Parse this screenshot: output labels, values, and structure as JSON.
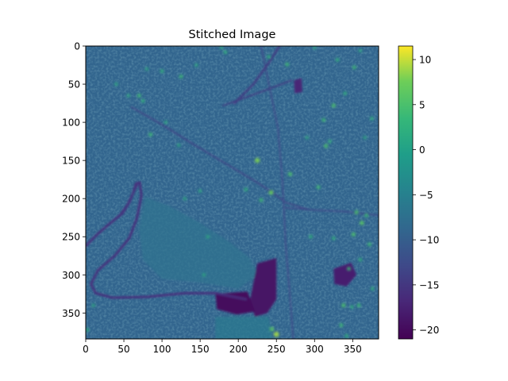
{
  "chart_data": {
    "type": "heatmap",
    "title": "Stitched Image",
    "xlabel": "",
    "ylabel": "",
    "x_ticks": [
      0,
      50,
      100,
      150,
      200,
      250,
      300,
      350
    ],
    "y_ticks": [
      0,
      50,
      100,
      150,
      200,
      250,
      300,
      350
    ],
    "xlim": [
      0,
      384
    ],
    "ylim": [
      384,
      0
    ],
    "y_inverted": true,
    "grid": false,
    "colormap": "viridis",
    "colorbar": {
      "min": -21,
      "max": 11.5,
      "ticks": [
        10,
        5,
        0,
        -5,
        -10,
        -15,
        -20
      ]
    },
    "background_value": -9,
    "features": [
      {
        "kind": "river",
        "value": -16,
        "width": 3,
        "points": [
          [
            0,
            262
          ],
          [
            15,
            247
          ],
          [
            30,
            234
          ],
          [
            45,
            222
          ],
          [
            55,
            208
          ],
          [
            62,
            193
          ],
          [
            66,
            180
          ],
          [
            71,
            179
          ],
          [
            73,
            196
          ],
          [
            67,
            226
          ],
          [
            57,
            252
          ],
          [
            38,
            275
          ],
          [
            16,
            294
          ],
          [
            7,
            312
          ],
          [
            13,
            324
          ],
          [
            35,
            330
          ],
          [
            80,
            329
          ],
          [
            130,
            324
          ],
          [
            170,
            324
          ],
          [
            190,
            328
          ],
          [
            210,
            332
          ]
        ]
      },
      {
        "kind": "river",
        "value": -15,
        "width": 2,
        "points": [
          [
            48,
            221
          ],
          [
            58,
            205
          ],
          [
            64,
            190
          ],
          [
            68,
            182
          ]
        ]
      },
      {
        "kind": "road",
        "value": -14,
        "width": 2,
        "points": [
          [
            60,
            80
          ],
          [
            100,
            103
          ],
          [
            140,
            128
          ],
          [
            180,
            152
          ],
          [
            220,
            176
          ],
          [
            245,
            192
          ],
          [
            262,
            205
          ],
          [
            290,
            214
          ]
        ]
      },
      {
        "kind": "road",
        "value": -13,
        "width": 2,
        "points": [
          [
            230,
            0
          ],
          [
            252,
            108
          ],
          [
            258,
            178
          ],
          [
            260,
            215
          ],
          [
            262,
            260
          ],
          [
            268,
            330
          ],
          [
            272,
            384
          ]
        ]
      },
      {
        "kind": "road",
        "value": -13,
        "width": 2,
        "points": [
          [
            262,
            212
          ],
          [
            300,
            215
          ],
          [
            340,
            217
          ],
          [
            384,
            222
          ]
        ]
      },
      {
        "kind": "road",
        "value": -15,
        "width": 3,
        "points": [
          [
            195,
            75
          ],
          [
            220,
            50
          ],
          [
            240,
            22
          ],
          [
            254,
            0
          ]
        ]
      },
      {
        "kind": "road",
        "value": -15,
        "width": 2,
        "points": [
          [
            180,
            78
          ],
          [
            230,
            60
          ],
          [
            270,
            45
          ]
        ]
      },
      {
        "kind": "water",
        "value": -19,
        "points": [
          [
            225,
            285
          ],
          [
            250,
            278
          ],
          [
            250,
            332
          ],
          [
            238,
            350
          ],
          [
            222,
            355
          ],
          [
            215,
            335
          ]
        ]
      },
      {
        "kind": "water",
        "value": -20,
        "points": [
          [
            170,
            325
          ],
          [
            212,
            322
          ],
          [
            222,
            348
          ],
          [
            198,
            352
          ],
          [
            172,
            345
          ]
        ]
      },
      {
        "kind": "water",
        "value": -18,
        "points": [
          [
            325,
            292
          ],
          [
            348,
            284
          ],
          [
            355,
            300
          ],
          [
            342,
            315
          ],
          [
            326,
            312
          ]
        ]
      },
      {
        "kind": "water",
        "value": -17,
        "points": [
          [
            273,
            45
          ],
          [
            283,
            42
          ],
          [
            284,
            60
          ],
          [
            274,
            62
          ]
        ]
      },
      {
        "kind": "grass",
        "value": -7,
        "points": [
          [
            78,
            198
          ],
          [
            110,
            210
          ],
          [
            150,
            232
          ],
          [
            190,
            258
          ],
          [
            215,
            278
          ],
          [
            225,
            300
          ],
          [
            200,
            318
          ],
          [
            150,
            310
          ],
          [
            100,
            305
          ],
          [
            75,
            280
          ],
          [
            70,
            240
          ]
        ]
      },
      {
        "kind": "grass",
        "value": -6,
        "points": [
          [
            170,
            355
          ],
          [
            240,
            355
          ],
          [
            245,
            384
          ],
          [
            170,
            384
          ]
        ]
      }
    ],
    "bright_spots": [
      [
        225,
        150,
        8
      ],
      [
        243,
        192,
        7
      ],
      [
        244,
        371,
        6
      ],
      [
        250,
        378,
        9
      ],
      [
        315,
        131,
        5
      ],
      [
        312,
        97,
        4
      ],
      [
        325,
        78,
        5
      ],
      [
        268,
        168,
        5
      ],
      [
        305,
        185,
        4
      ],
      [
        355,
        218,
        5
      ],
      [
        362,
        232,
        6
      ],
      [
        368,
        222,
        4
      ],
      [
        351,
        247,
        5
      ],
      [
        372,
        260,
        4
      ],
      [
        360,
        280,
        3
      ],
      [
        345,
        292,
        4
      ],
      [
        338,
        340,
        5
      ],
      [
        349,
        342,
        3
      ],
      [
        335,
        366,
        4
      ],
      [
        342,
        380,
        3
      ],
      [
        358,
        340,
        4
      ],
      [
        376,
        318,
        3
      ],
      [
        325,
        252,
        3
      ],
      [
        295,
        250,
        3
      ],
      [
        230,
        202,
        4
      ],
      [
        210,
        188,
        3
      ],
      [
        290,
        120,
        2
      ],
      [
        320,
        125,
        3
      ],
      [
        240,
        14,
        3
      ],
      [
        264,
        24,
        4
      ],
      [
        300,
        2,
        2
      ],
      [
        330,
        18,
        3
      ],
      [
        352,
        28,
        4
      ],
      [
        360,
        6,
        2
      ],
      [
        340,
        62,
        3
      ],
      [
        375,
        95,
        3
      ],
      [
        366,
        120,
        2
      ],
      [
        100,
        33,
        3
      ],
      [
        125,
        40,
        4
      ],
      [
        145,
        25,
        2
      ],
      [
        70,
        65,
        4
      ],
      [
        75,
        72,
        3
      ],
      [
        80,
        30,
        2
      ],
      [
        85,
        116,
        4
      ],
      [
        105,
        100,
        2
      ],
      [
        56,
        65,
        2
      ],
      [
        40,
        50,
        2
      ],
      [
        122,
        130,
        2
      ],
      [
        130,
        200,
        2
      ],
      [
        150,
        190,
        2
      ],
      [
        155,
        300,
        2
      ],
      [
        160,
        250,
        2
      ],
      [
        183,
        8,
        3
      ],
      [
        178,
        2,
        2
      ],
      [
        2,
        372,
        3
      ],
      [
        10,
        340,
        2
      ]
    ]
  }
}
